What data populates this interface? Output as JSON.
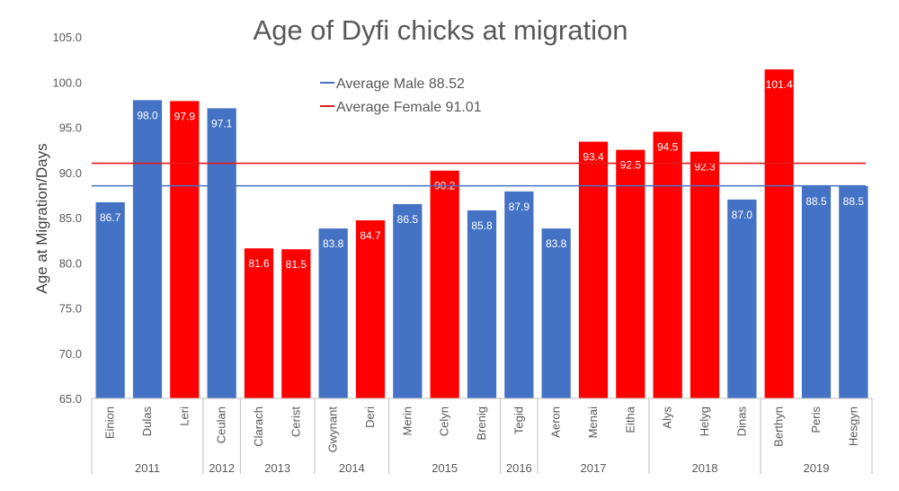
{
  "chart_data": {
    "type": "bar",
    "title": "Age of Dyfi chicks at migration",
    "ylabel": "Age at Migration/Days",
    "xlabel": "",
    "ylim": [
      65,
      105
    ],
    "ytick_step": 5,
    "grid": false,
    "legend_position": "top-center",
    "categories": [
      "Einion",
      "Dulas",
      "Leri",
      "Ceulan",
      "Clarach",
      "Cerist",
      "Gwynant",
      "Deri",
      "Merin",
      "Celyn",
      "Brenig",
      "Tegid",
      "Aeron",
      "Menai",
      "Eitha",
      "Alys",
      "Helyg",
      "Dinas",
      "Berthyn",
      "Peris",
      "Hesgyn"
    ],
    "values": [
      86.7,
      98.0,
      97.9,
      97.1,
      81.6,
      81.5,
      83.8,
      84.7,
      86.5,
      90.2,
      85.8,
      87.9,
      83.8,
      93.4,
      92.5,
      94.5,
      92.3,
      87.0,
      101.4,
      88.5,
      88.5
    ],
    "sex": [
      "male",
      "male",
      "female",
      "male",
      "female",
      "female",
      "male",
      "female",
      "male",
      "female",
      "male",
      "male",
      "male",
      "female",
      "female",
      "female",
      "female",
      "male",
      "female",
      "male",
      "male"
    ],
    "year_groups": [
      {
        "label": "2011",
        "count": 3
      },
      {
        "label": "2012",
        "count": 1
      },
      {
        "label": "2013",
        "count": 2
      },
      {
        "label": "2014",
        "count": 2
      },
      {
        "label": "2015",
        "count": 3
      },
      {
        "label": "2016",
        "count": 1
      },
      {
        "label": "2017",
        "count": 3
      },
      {
        "label": "2018",
        "count": 3
      },
      {
        "label": "2019",
        "count": 3
      }
    ],
    "reference_lines": [
      {
        "label": "Average Male 88.52",
        "value": 88.52,
        "color": "#4472C4"
      },
      {
        "label": "Average Female 91.01",
        "value": 91.01,
        "color": "#E31A1C"
      }
    ],
    "colors": {
      "male": "#4472C4",
      "female": "#FF0000",
      "axis": "#BFBFBF",
      "text": "#595959",
      "label": "#FFFFFF"
    }
  }
}
